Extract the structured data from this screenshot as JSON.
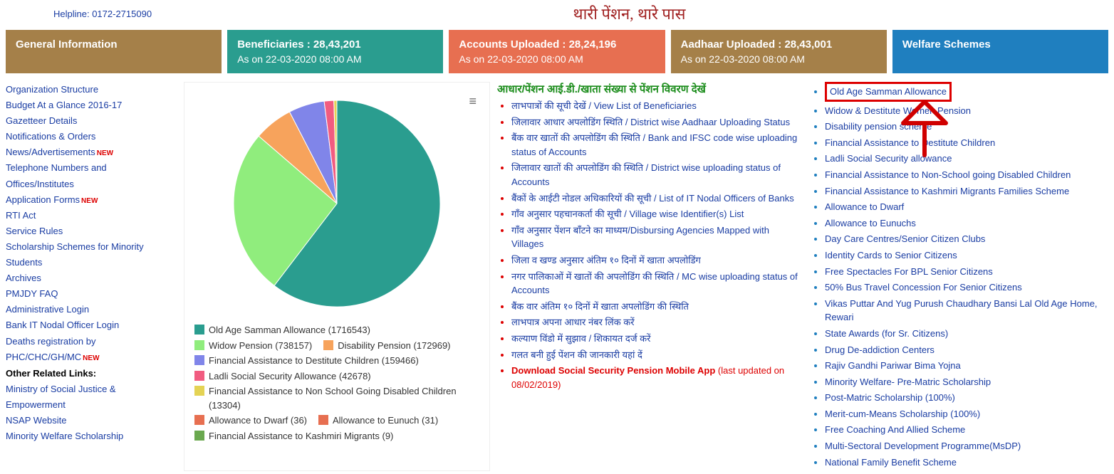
{
  "header": {
    "helpline": "Helpline: 0172-2715090",
    "title": "थारी पेंशन, थारे पास"
  },
  "cards": {
    "general": {
      "title": "General Information"
    },
    "beneficiaries": {
      "title": "Beneficiaries : 28,43,201",
      "sub": "As on 22-03-2020 08:00 AM"
    },
    "accounts": {
      "title": "Accounts Uploaded : 28,24,196",
      "sub": "As on 22-03-2020 08:00 AM"
    },
    "aadhaar": {
      "title": "Aadhaar Uploaded : 28,43,001",
      "sub": "As on 22-03-2020 08:00 AM"
    },
    "welfare": {
      "title": "Welfare Schemes"
    }
  },
  "left_links": [
    {
      "label": "Organization Structure",
      "new": false
    },
    {
      "label": "Budget At a Glance 2016-17",
      "new": false
    },
    {
      "label": "Gazetteer Details",
      "new": false
    },
    {
      "label": "Notifications & Orders",
      "new": false
    },
    {
      "label": "News/Advertisements",
      "new": true
    },
    {
      "label": "Telephone Numbers and Offices/Institutes",
      "new": false
    },
    {
      "label": "Application Forms",
      "new": true
    },
    {
      "label": "RTI Act",
      "new": false
    },
    {
      "label": "Service Rules",
      "new": false
    },
    {
      "label": "Scholarship Schemes for Minority Students",
      "new": false
    },
    {
      "label": "Archives",
      "new": false
    },
    {
      "label": "PMJDY FAQ",
      "new": false
    },
    {
      "label": "Administrative Login",
      "new": false
    },
    {
      "label": "Bank IT Nodal Officer Login",
      "new": false
    },
    {
      "label": "Deaths registration by PHC/CHC/GH/MC",
      "new": true
    }
  ],
  "other_links_header": "Other Related Links:",
  "other_links": [
    "Ministry of Social Justice & Empowerment",
    "NSAP Website",
    "Minority Welfare Scholarship"
  ],
  "pie": {
    "type": "pie",
    "background": "#ffffff",
    "slices": [
      {
        "label": "Old Age Samman Allowance",
        "value": 1716543,
        "color": "#2a9d8f"
      },
      {
        "label": "Widow Pension",
        "value": 738157,
        "color": "#90ed7d"
      },
      {
        "label": "Disability Pension",
        "value": 172969,
        "color": "#f7a35c"
      },
      {
        "label": "Financial Assistance to Destitute Children",
        "value": 159466,
        "color": "#8085e9"
      },
      {
        "label": "Ladli Social Security Allowance",
        "value": 42678,
        "color": "#f15c80"
      },
      {
        "label": "Financial Assistance to Non School Going Disabled Children",
        "value": 13304,
        "color": "#e4d354"
      },
      {
        "label": "Allowance to Dwarf",
        "value": 36,
        "color": "#e76f51"
      },
      {
        "label": "Allowance to Eunuch",
        "value": 31,
        "color": "#e76f51"
      },
      {
        "label": "Financial Assistance to Kashmiri Migrants",
        "value": 9,
        "color": "#6aa84f"
      }
    ]
  },
  "mid_header": "आधार/पेंशन आई.डी./खाता संख्या से पेंशन विवरण देखें",
  "mid_links": [
    {
      "text": "लाभपात्रों की सूची देखें / View List of Beneficiaries"
    },
    {
      "text": "जिलावार आधार अपलोडिंग स्थिति / District wise Aadhaar Uploading Status"
    },
    {
      "text": "बैंक वार खातों की अपलोडिंग की स्थिति / Bank and IFSC code wise uploading status of Accounts"
    },
    {
      "text": "जिलावार खातों की अपलोडिंग की स्थिति / District wise uploading status of Accounts"
    },
    {
      "text": "बैंकों के आईटी नोडल अधिकारियों की सूची / List of IT Nodal Officers of Banks"
    },
    {
      "text": "गाँव अनुसार पहचानकर्ता की सूची / Village wise Identifier(s) List"
    },
    {
      "text": "गाँव अनुसार पेंशन बाँटने का माध्यम/Disbursing Agencies Mapped with Villages"
    },
    {
      "text": "जिला व खण्ड अनुसार अंतिम १० दिनों में खाता अपलोडिंग"
    },
    {
      "text": "नगर पालिकाओं में खातों की अपलोडिंग की स्थिति / MC wise uploading status of Accounts"
    },
    {
      "text": "बैंक वार अंतिम १० दिनों में खाता अपलोडिंग की स्थिति"
    },
    {
      "text": "लाभपात्र अपना आधार नंबर लिंक करें"
    },
    {
      "text": "कल्याण विंडो में सुझाव / शिकायत दर्ज करें"
    },
    {
      "text": "गलत बनी हुई पेंशन की जानकारी यहां दें"
    },
    {
      "text": "Download Social Security Pension Mobile App",
      "red": true,
      "suffix": " (last updated on 08/02/2019)"
    }
  ],
  "welfare_links": [
    "Old Age Samman Allowance",
    "Widow & Destitute Women Pension",
    "Disability pension scheme",
    "Financial Assistance to Destitute Children",
    "Ladli Social Security allowance",
    "Financial Assistance to Non-School going Disabled Children",
    "Financial Assistance to Kashmiri Migrants Families Scheme",
    "Allowance to Dwarf",
    "Allowance to Eunuchs",
    "Day Care Centres/Senior Citizen Clubs",
    "Identity Cards to Senior Citizens",
    "Free Spectacles For BPL Senior Citizens",
    "50% Bus Travel Concession For Senior Citizens",
    "Vikas Puttar And Yug Purush Chaudhary Bansi Lal Old Age Home, Rewari",
    "State Awards (for Sr. Citizens)",
    "Drug De-addiction Centers",
    "Rajiv Gandhi Pariwar Bima Yojna",
    "Minority Welfare- Pre-Matric Scholarship",
    "Post-Matric Scholarship (100%)",
    "Merit-cum-Means Scholarship (100%)",
    "Free Coaching And Allied Scheme",
    "Multi-Sectoral Development Programme(MsDP)",
    "National Family Benefit Scheme"
  ]
}
